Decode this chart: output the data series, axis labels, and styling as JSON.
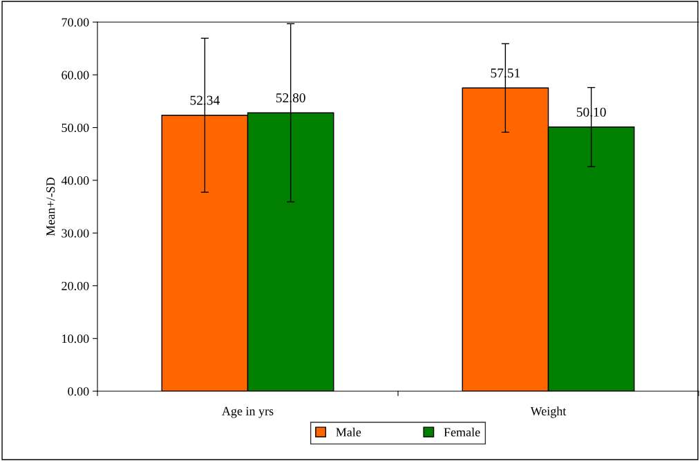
{
  "chart_data": {
    "type": "bar",
    "ylabel": "Mean+/-SD",
    "categories": [
      "Age in yrs",
      "Weight"
    ],
    "series": [
      {
        "name": "Male",
        "color": "#ff6600",
        "values": [
          52.34,
          57.51
        ],
        "errors": [
          14.6,
          8.4
        ],
        "value_labels": [
          "52.34",
          "57.51"
        ]
      },
      {
        "name": "Female",
        "color": "#007f00",
        "values": [
          52.8,
          50.1
        ],
        "errors": [
          16.9,
          7.5
        ],
        "value_labels": [
          "52.80",
          "50.10"
        ]
      }
    ],
    "ylim": [
      0,
      70
    ],
    "yticks": [
      {
        "value": 0,
        "label": "0.00"
      },
      {
        "value": 10,
        "label": "10.00"
      },
      {
        "value": 20,
        "label": "20.00"
      },
      {
        "value": 30,
        "label": "30.00"
      },
      {
        "value": 40,
        "label": "40.00"
      },
      {
        "value": 50,
        "label": "50.00"
      },
      {
        "value": 60,
        "label": "60.00"
      },
      {
        "value": 70,
        "label": "70.00"
      }
    ],
    "grid": false,
    "legend": "bottom"
  }
}
